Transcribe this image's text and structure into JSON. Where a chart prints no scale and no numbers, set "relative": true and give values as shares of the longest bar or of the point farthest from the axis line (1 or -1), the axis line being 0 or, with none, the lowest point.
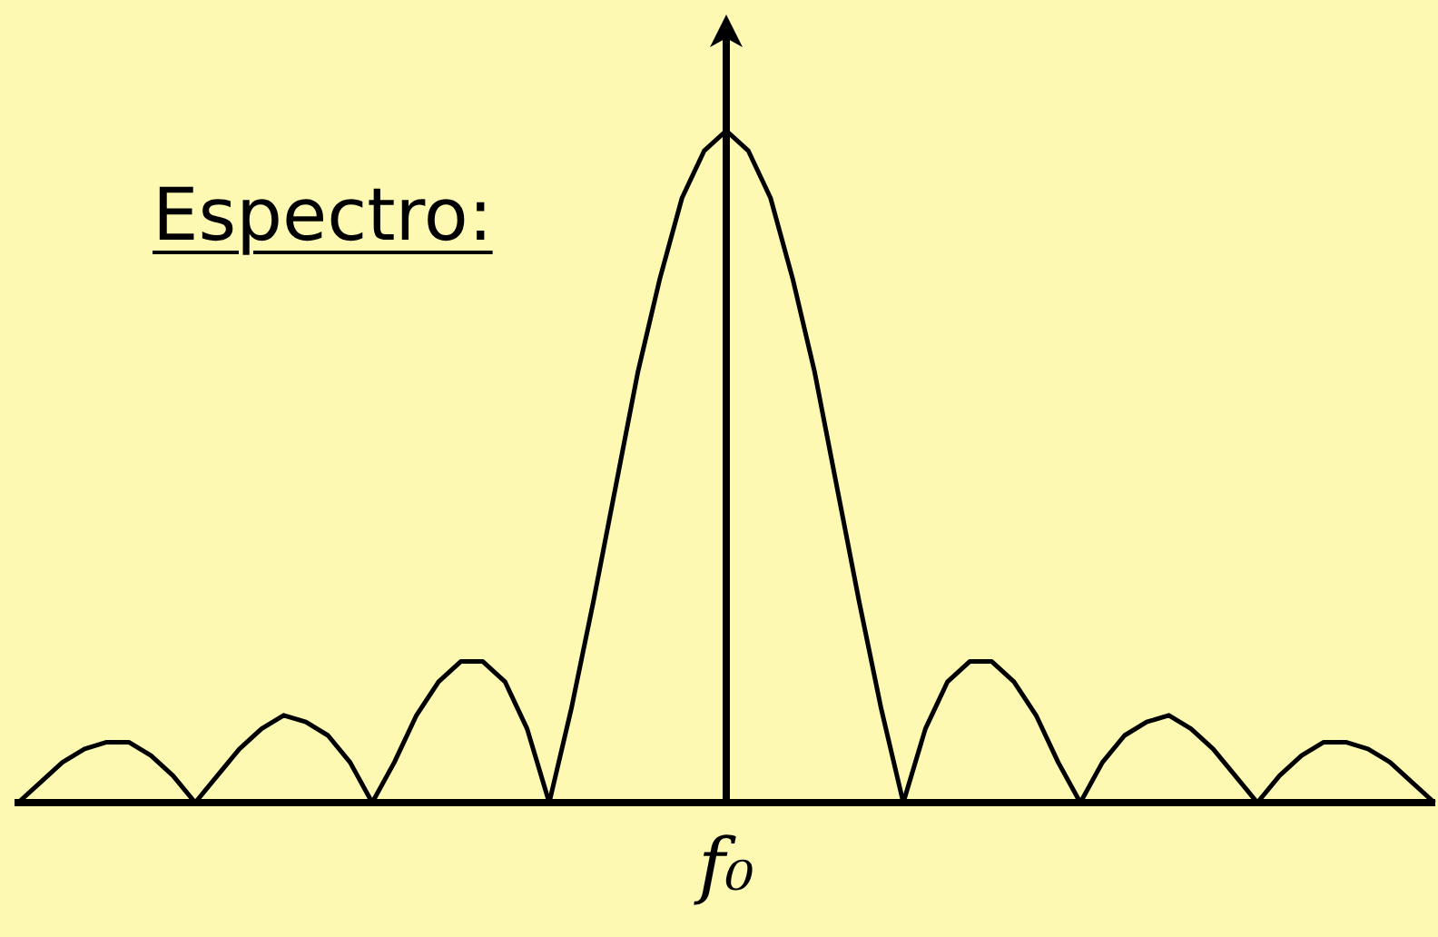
{
  "chart_data": {
    "type": "line",
    "title": "Espectro:",
    "relative": true,
    "color": "#000000",
    "grid": false,
    "legend": false,
    "marker": "none",
    "line_style": "solid",
    "tick_labels": false,
    "categories": [
      null,
      null,
      null,
      null,
      null,
      null,
      null,
      null,
      null,
      null,
      null,
      null,
      null,
      null,
      null,
      null,
      null,
      null,
      null,
      null,
      null,
      null,
      null,
      null,
      null,
      null,
      null,
      null,
      null,
      null,
      null,
      null,
      null,
      null,
      null,
      null,
      null,
      null,
      null,
      null,
      null,
      null,
      null,
      null,
      null,
      null,
      null,
      null,
      null,
      null,
      null,
      null,
      null,
      null,
      null,
      null,
      null,
      null,
      null,
      null,
      null,
      null,
      null,
      null,
      null
    ],
    "annotations": [
      "f₀"
    ],
    "values": [
      0,
      0.03,
      0.06,
      0.08,
      0.09,
      0.09,
      0.07,
      0.04,
      0,
      0.04,
      0.08,
      0.11,
      0.13,
      0.12,
      0.1,
      0.06,
      0,
      0.06,
      0.13,
      0.18,
      0.21,
      0.21,
      0.18,
      0.11,
      0,
      0.14,
      0.3,
      0.47,
      0.64,
      0.78,
      0.9,
      0.97,
      1,
      0.97,
      0.9,
      0.78,
      0.64,
      0.47,
      0.3,
      0.14,
      0,
      0.11,
      0.18,
      0.21,
      0.21,
      0.18,
      0.13,
      0.06,
      0,
      0.06,
      0.1,
      0.12,
      0.13,
      0.11,
      0.08,
      0.04,
      0,
      0.04,
      0.07,
      0.09,
      0.09,
      0.08,
      0.06,
      0.03,
      0
    ]
  }
}
